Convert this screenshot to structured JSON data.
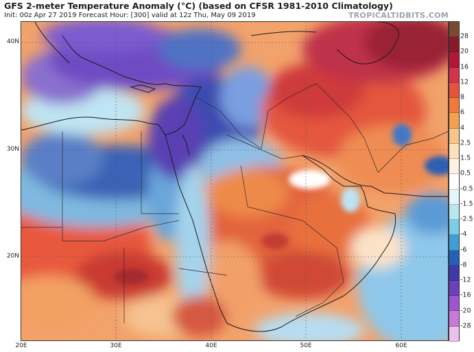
{
  "header": {
    "title": "GFS 2-meter Temperature Anomaly (°C) (based on CFSR 1981-2010 Climatology)",
    "subtitle": "Init: 00z Apr 27 2019   Forecast Hour: [300]   valid at 12z Thu, May 09 2019",
    "credit": "TROPICALTIDBITS.COM"
  },
  "map": {
    "lat_labels": [
      {
        "text": "40N"
      },
      {
        "text": "30N"
      },
      {
        "text": "20N"
      }
    ],
    "lon_labels": [
      {
        "text": "20E"
      },
      {
        "text": "30E"
      },
      {
        "text": "40E"
      },
      {
        "text": "50E"
      },
      {
        "text": "60E"
      }
    ]
  },
  "colorbar": {
    "labels": [
      "28",
      "20",
      "16",
      "12",
      "8",
      "6",
      "4",
      "2.5",
      "1.5",
      "0.5",
      "-0.5",
      "-1.5",
      "-2.5",
      "-4",
      "-6",
      "-8",
      "-12",
      "-16",
      "-20",
      "-28"
    ],
    "colors": [
      "#7a4a2e",
      "#8a1a2a",
      "#b2173a",
      "#d6334a",
      "#e8513a",
      "#f07a3a",
      "#f5a250",
      "#f8c488",
      "#fbe0bc",
      "#fdf3e4",
      "#ffffff",
      "#e4f6fb",
      "#b8e6f2",
      "#7ecde8",
      "#3f9ed6",
      "#2460b8",
      "#3f3aa8",
      "#6b3fbf",
      "#9e55cf",
      "#c77ad8",
      "#ecc0ec"
    ]
  }
}
